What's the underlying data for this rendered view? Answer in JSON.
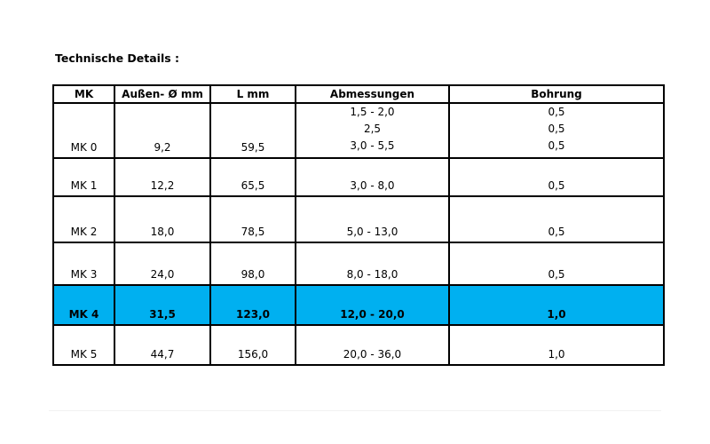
{
  "title": "Technische Details :",
  "table": {
    "headers": [
      "MK",
      "Außen- Ø mm",
      "L mm",
      "Abmessungen",
      "Bohrung"
    ],
    "rows": [
      [
        "MK 0",
        "9,2",
        "59,5",
        [
          "1,5 - 2,0",
          "2,5",
          "3,0 - 5,5"
        ],
        [
          "0,5",
          "0,5",
          "0,5"
        ]
      ],
      [
        "MK 1",
        "12,2",
        "65,5",
        "3,0 - 8,0",
        "0,5"
      ],
      [
        "MK 2",
        "18,0",
        "78,5",
        "5,0 - 13,0",
        "0,5"
      ],
      [
        "MK 3",
        "24,0",
        "98,0",
        "8,0 - 18,0",
        "0,5"
      ],
      [
        "MK 4",
        "31,5",
        "123,0",
        "12,0 - 20,0",
        "1,0"
      ],
      [
        "MK 5",
        "44,7",
        "156,0",
        "20,0 - 36,0",
        "1,0"
      ]
    ],
    "highlight": {
      "row": 4,
      "color": "#00b0f0"
    }
  }
}
